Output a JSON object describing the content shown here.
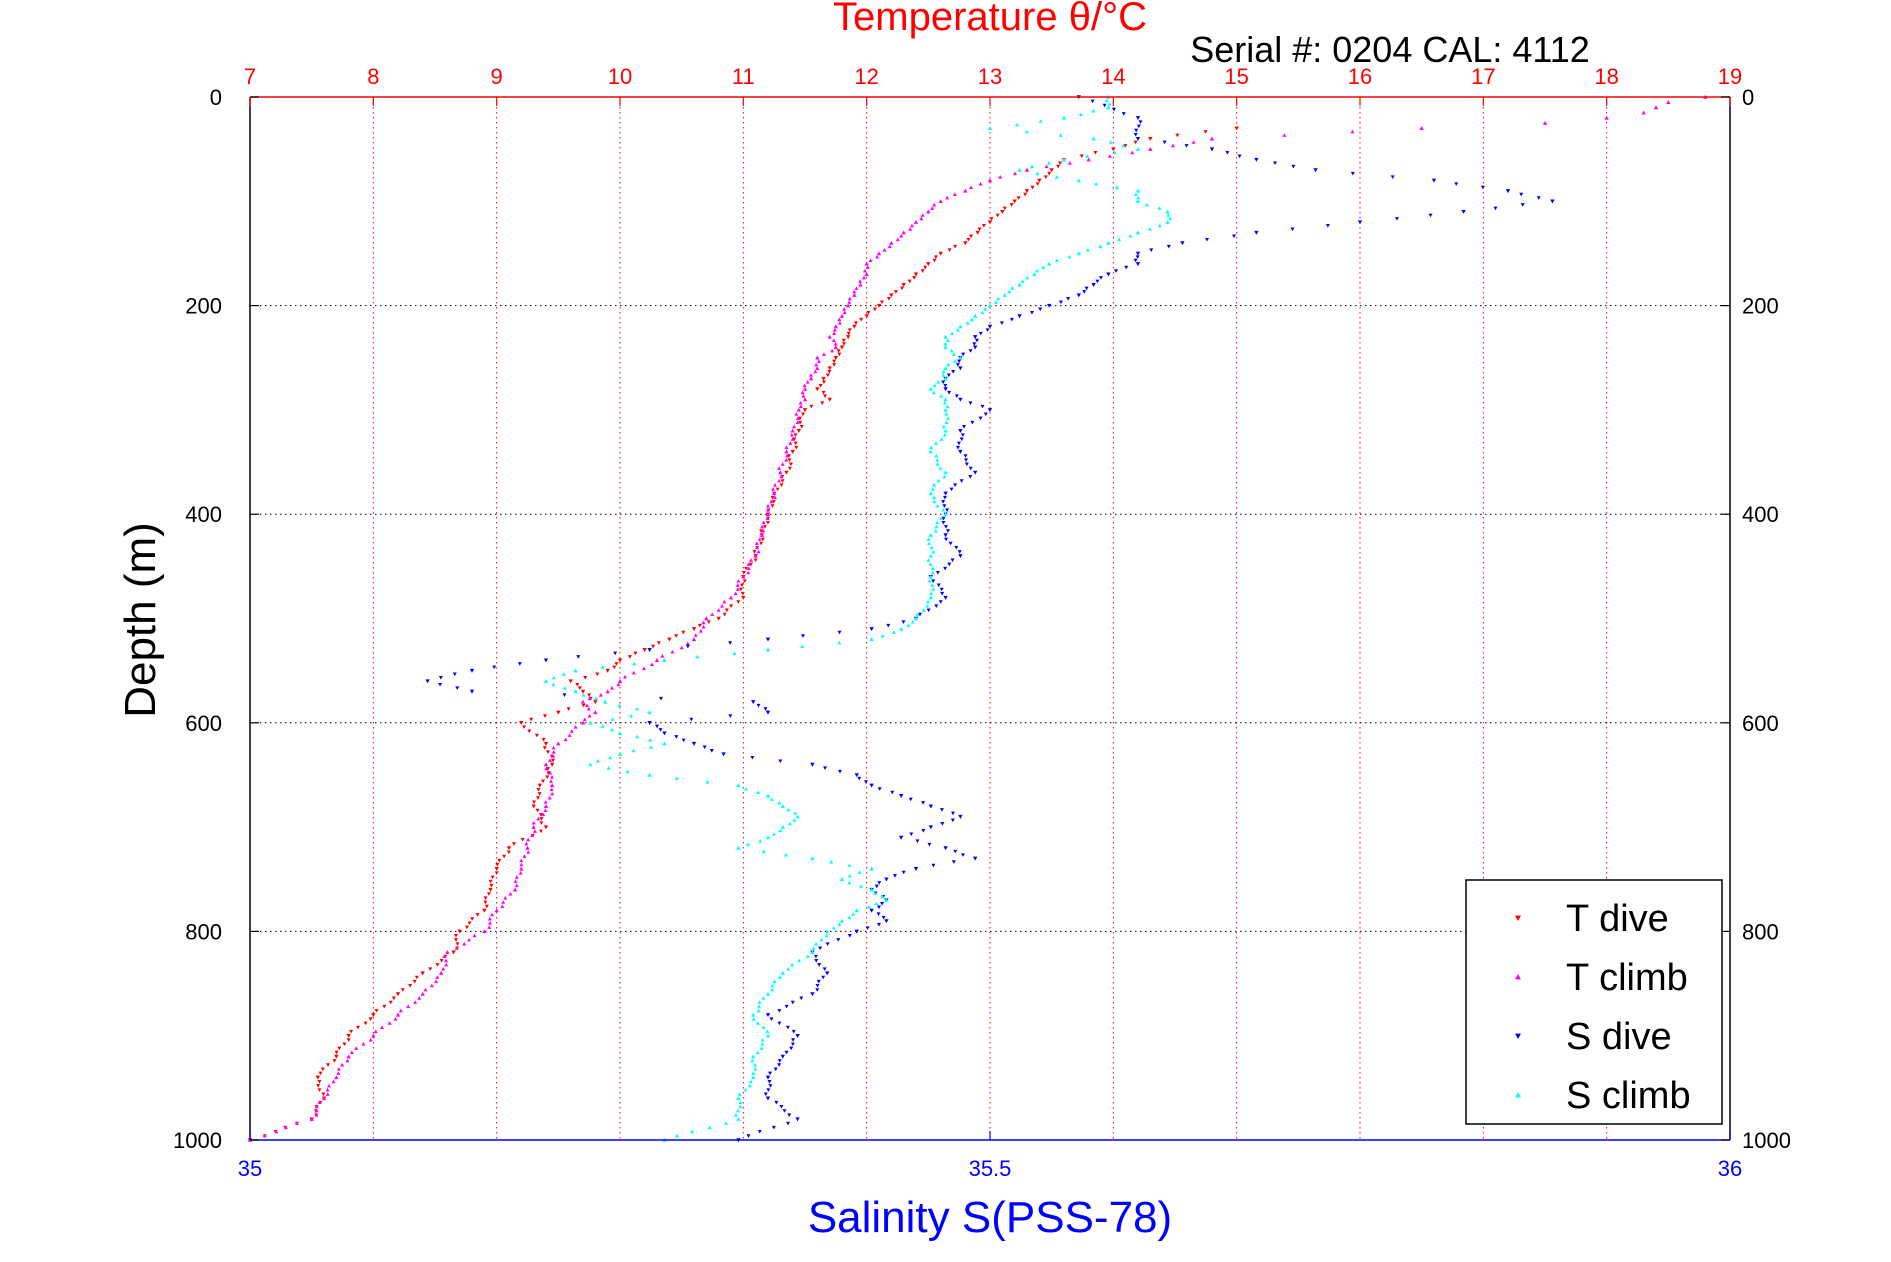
{
  "chart_data": {
    "type": "scatter",
    "title": "Temperature θ/°C",
    "subtitle": "Serial #: 0204  CAL: 4112",
    "xlabel": "Salinity S(PSS-78)",
    "ylabel": "Depth (m)",
    "x_top_label": "Temperature θ/°C",
    "x_top_lim": [
      7,
      19
    ],
    "x_top_ticks": [
      "7",
      "8",
      "9",
      "10",
      "11",
      "12",
      "13",
      "14",
      "15",
      "16",
      "17",
      "18",
      "19"
    ],
    "x_bottom_lim": [
      35,
      36
    ],
    "x_bottom_ticks": [
      "35",
      "35.5",
      "36"
    ],
    "ylim": [
      0,
      1000
    ],
    "y_ticks": [
      "0",
      "200",
      "400",
      "600",
      "800",
      "1000"
    ],
    "y_reversed": true,
    "grid": true,
    "legend_position": "bottom-right",
    "colors": {
      "t_axis": "#ff0000",
      "s_axis": "#0000ff",
      "t_dive": "#ff0000",
      "t_climb": "#ff00ff",
      "s_dive": "#0000ff",
      "s_climb": "#00ffff"
    },
    "series": [
      {
        "name": "T dive",
        "axis": "temperature",
        "marker": "triangle-down",
        "color": "#ff0000",
        "y": [
          30,
          40,
          50,
          60,
          70,
          80,
          90,
          100,
          110,
          120,
          130,
          140,
          150,
          160,
          170,
          180,
          190,
          200,
          210,
          220,
          230,
          240,
          250,
          260,
          270,
          280,
          290,
          300,
          320,
          340,
          360,
          380,
          400,
          420,
          440,
          460,
          480,
          500,
          510,
          520,
          530,
          540,
          550,
          560,
          570,
          580,
          590,
          600,
          620,
          640,
          660,
          680,
          700,
          720,
          740,
          760,
          780,
          800,
          820,
          840,
          860,
          880,
          900,
          920,
          940,
          960,
          980,
          1000
        ],
        "x": [
          15.0,
          14.3,
          14.0,
          13.6,
          13.5,
          13.4,
          13.3,
          13.2,
          13.1,
          13.0,
          12.9,
          12.8,
          12.6,
          12.5,
          12.4,
          12.3,
          12.2,
          12.1,
          12.0,
          11.9,
          11.85,
          11.8,
          11.75,
          11.7,
          11.65,
          11.6,
          11.7,
          11.5,
          11.45,
          11.4,
          11.35,
          11.25,
          11.2,
          11.15,
          11.1,
          11.0,
          11.0,
          10.8,
          10.6,
          10.4,
          10.2,
          10.0,
          9.9,
          9.6,
          9.7,
          9.8,
          9.5,
          9.2,
          9.4,
          9.45,
          9.35,
          9.3,
          9.4,
          9.1,
          9.0,
          8.95,
          8.9,
          8.7,
          8.65,
          8.4,
          8.2,
          8.0,
          7.8,
          7.7,
          7.55,
          7.6,
          7.5,
          7.0
        ]
      },
      {
        "name": "T climb",
        "axis": "temperature",
        "marker": "triangle-up",
        "color": "#ff00ff",
        "y": [
          0,
          5,
          10,
          15,
          20,
          25,
          30,
          40,
          50,
          60,
          70,
          80,
          90,
          100,
          110,
          120,
          130,
          140,
          150,
          160,
          170,
          180,
          190,
          200,
          210,
          220,
          230,
          240,
          250,
          260,
          270,
          280,
          290,
          300,
          320,
          340,
          360,
          380,
          400,
          420,
          440,
          460,
          480,
          500,
          520,
          540,
          560,
          570,
          580,
          590,
          600,
          620,
          640,
          660,
          680,
          700,
          720,
          740,
          760,
          780,
          800,
          820,
          840,
          860,
          880,
          900,
          920,
          940,
          960,
          980,
          1000
        ],
        "x": [
          18.8,
          18.5,
          18.4,
          18.3,
          18.0,
          17.5,
          16.5,
          14.8,
          14.3,
          13.8,
          13.3,
          13.0,
          12.8,
          12.6,
          12.5,
          12.4,
          12.3,
          12.2,
          12.1,
          12.0,
          12.0,
          11.95,
          11.9,
          11.85,
          11.8,
          11.75,
          11.7,
          11.75,
          11.6,
          11.6,
          11.55,
          11.5,
          11.5,
          11.45,
          11.4,
          11.35,
          11.3,
          11.25,
          11.2,
          11.15,
          11.1,
          11.0,
          10.9,
          10.7,
          10.6,
          10.3,
          10.0,
          9.9,
          9.7,
          9.8,
          9.7,
          9.5,
          9.4,
          9.45,
          9.4,
          9.3,
          9.25,
          9.2,
          9.15,
          9.0,
          8.9,
          8.6,
          8.55,
          8.4,
          8.2,
          8.0,
          7.8,
          7.7,
          7.6,
          7.5,
          7.0
        ]
      },
      {
        "name": "S dive",
        "axis": "salinity",
        "marker": "triangle-down",
        "color": "#0000ff",
        "y": [
          0,
          20,
          40,
          50,
          60,
          70,
          80,
          90,
          100,
          110,
          120,
          130,
          140,
          150,
          160,
          170,
          180,
          190,
          200,
          210,
          220,
          230,
          240,
          250,
          260,
          270,
          280,
          290,
          300,
          320,
          340,
          360,
          380,
          400,
          420,
          440,
          460,
          480,
          500,
          510,
          520,
          530,
          540,
          550,
          560,
          570,
          580,
          590,
          600,
          610,
          620,
          630,
          640,
          650,
          660,
          670,
          680,
          690,
          700,
          710,
          720,
          730,
          740,
          750,
          760,
          770,
          780,
          790,
          800,
          820,
          840,
          860,
          880,
          900,
          920,
          940,
          960,
          980,
          1000
        ],
        "x": [
          35.56,
          35.6,
          35.6,
          35.65,
          35.68,
          35.72,
          35.8,
          35.85,
          35.88,
          35.82,
          35.75,
          35.68,
          35.63,
          35.6,
          35.6,
          35.58,
          35.57,
          35.56,
          35.54,
          35.52,
          35.5,
          35.49,
          35.49,
          35.48,
          35.48,
          35.47,
          35.47,
          35.48,
          35.5,
          35.48,
          35.48,
          35.49,
          35.47,
          35.47,
          35.47,
          35.48,
          35.46,
          35.47,
          35.45,
          35.42,
          35.35,
          35.27,
          35.2,
          35.15,
          35.12,
          35.15,
          35.34,
          35.35,
          35.27,
          35.28,
          35.3,
          35.32,
          35.38,
          35.41,
          35.42,
          35.44,
          35.46,
          35.48,
          35.46,
          35.44,
          35.47,
          35.49,
          35.45,
          35.43,
          35.42,
          35.43,
          35.42,
          35.43,
          35.41,
          35.38,
          35.39,
          35.38,
          35.35,
          35.37,
          35.36,
          35.35,
          35.35,
          35.37,
          35.33
        ]
      },
      {
        "name": "S climb",
        "axis": "salinity",
        "marker": "triangle-up",
        "color": "#00ffff",
        "y": [
          0,
          10,
          20,
          30,
          40,
          50,
          60,
          70,
          80,
          90,
          100,
          110,
          120,
          130,
          140,
          150,
          160,
          170,
          180,
          190,
          200,
          210,
          220,
          230,
          240,
          250,
          260,
          270,
          280,
          290,
          300,
          320,
          340,
          360,
          380,
          400,
          420,
          440,
          460,
          480,
          500,
          510,
          520,
          530,
          540,
          550,
          560,
          570,
          580,
          590,
          600,
          610,
          620,
          630,
          640,
          650,
          660,
          670,
          680,
          690,
          700,
          710,
          720,
          730,
          740,
          750,
          760,
          770,
          780,
          790,
          800,
          820,
          840,
          860,
          880,
          900,
          920,
          940,
          960,
          980,
          1000
        ],
        "x": [
          35.58,
          35.58,
          35.55,
          35.5,
          35.57,
          35.6,
          35.55,
          35.52,
          35.56,
          35.6,
          35.6,
          35.62,
          35.62,
          35.6,
          35.58,
          35.56,
          35.54,
          35.53,
          35.52,
          35.51,
          35.5,
          35.49,
          35.48,
          35.47,
          35.47,
          35.48,
          35.47,
          35.47,
          35.46,
          35.47,
          35.47,
          35.47,
          35.46,
          35.47,
          35.46,
          35.47,
          35.46,
          35.46,
          35.46,
          35.46,
          35.45,
          35.44,
          35.42,
          35.35,
          35.28,
          35.22,
          35.2,
          35.22,
          35.24,
          35.27,
          35.23,
          35.25,
          35.28,
          35.25,
          35.23,
          35.27,
          35.33,
          35.35,
          35.36,
          35.37,
          35.36,
          35.35,
          35.33,
          35.38,
          35.42,
          35.4,
          35.42,
          35.43,
          35.41,
          35.4,
          35.39,
          35.38,
          35.36,
          35.35,
          35.34,
          35.35,
          35.34,
          35.34,
          35.33,
          35.33,
          35.28
        ]
      }
    ]
  }
}
